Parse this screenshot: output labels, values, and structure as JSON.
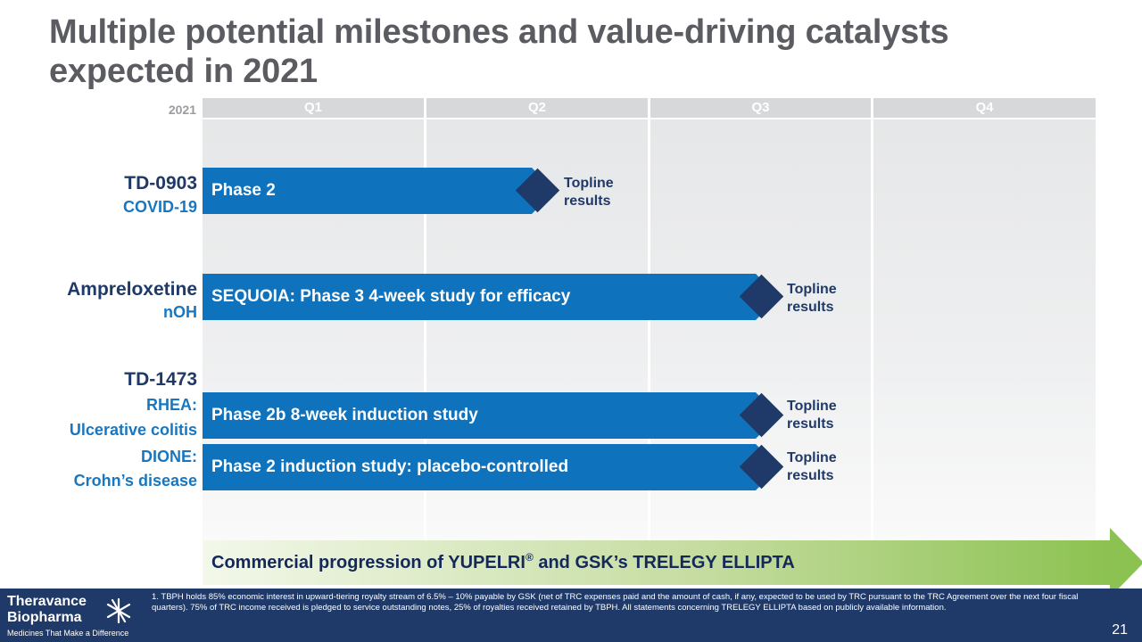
{
  "title": "Multiple potential milestones and value-driving catalysts expected in 2021",
  "timeline": {
    "year": "2021",
    "quarters": [
      "Q1",
      "Q2",
      "Q3",
      "Q4"
    ]
  },
  "programs": [
    {
      "name": "TD-0903",
      "indication": "COVID-19",
      "bar_label": "Phase 2",
      "milestone_line1": "Topline",
      "milestone_line2": "results"
    },
    {
      "name": "Ampreloxetine",
      "indication": "nOH",
      "bar_label": "SEQUOIA: Phase 3 4-week study for efficacy",
      "milestone_line1": "Topline",
      "milestone_line2": "results"
    },
    {
      "name": "TD-1473",
      "studies": [
        {
          "study": "RHEA:",
          "indication": "Ulcerative colitis",
          "bar_label": "Phase 2b 8-week induction study",
          "milestone_line1": "Topline",
          "milestone_line2": "results"
        },
        {
          "study": "DIONE:",
          "indication": "Crohn’s disease",
          "bar_label": "Phase 2 induction study: placebo-controlled",
          "milestone_line1": "Topline",
          "milestone_line2": "results"
        }
      ]
    }
  ],
  "commercial": {
    "text_before": "Commercial progression of YUPELRI",
    "registered": "®",
    "text_after": " and GSK’s TRELEGY ELLIPTA"
  },
  "footer": {
    "logo_line1": "Theravance",
    "logo_line2": "Biopharma",
    "logo_tagline": "Medicines That Make a Difference",
    "footnote": "1. TBPH holds 85% economic interest in upward-tiering royalty stream of 6.5% – 10% payable by GSK (net of TRC expenses paid and the amount of cash, if any, expected to be used by TRC pursuant to the TRC Agreement over the next four fiscal quarters). 75% of TRC income received is pledged to service outstanding notes, 25% of royalties received retained by TBPH. All statements concerning TRELEGY ELLIPTA based on publicly available information.",
    "page_number": "21"
  },
  "colors": {
    "bar": "#0f72bd",
    "milestone": "#1f3a68",
    "title": "#5a5c61",
    "footer_bg": "#1f3a68",
    "arrow": "#8cc251"
  },
  "icons": [
    "milestone-diamond-icon",
    "theravance-star-logo-icon"
  ]
}
